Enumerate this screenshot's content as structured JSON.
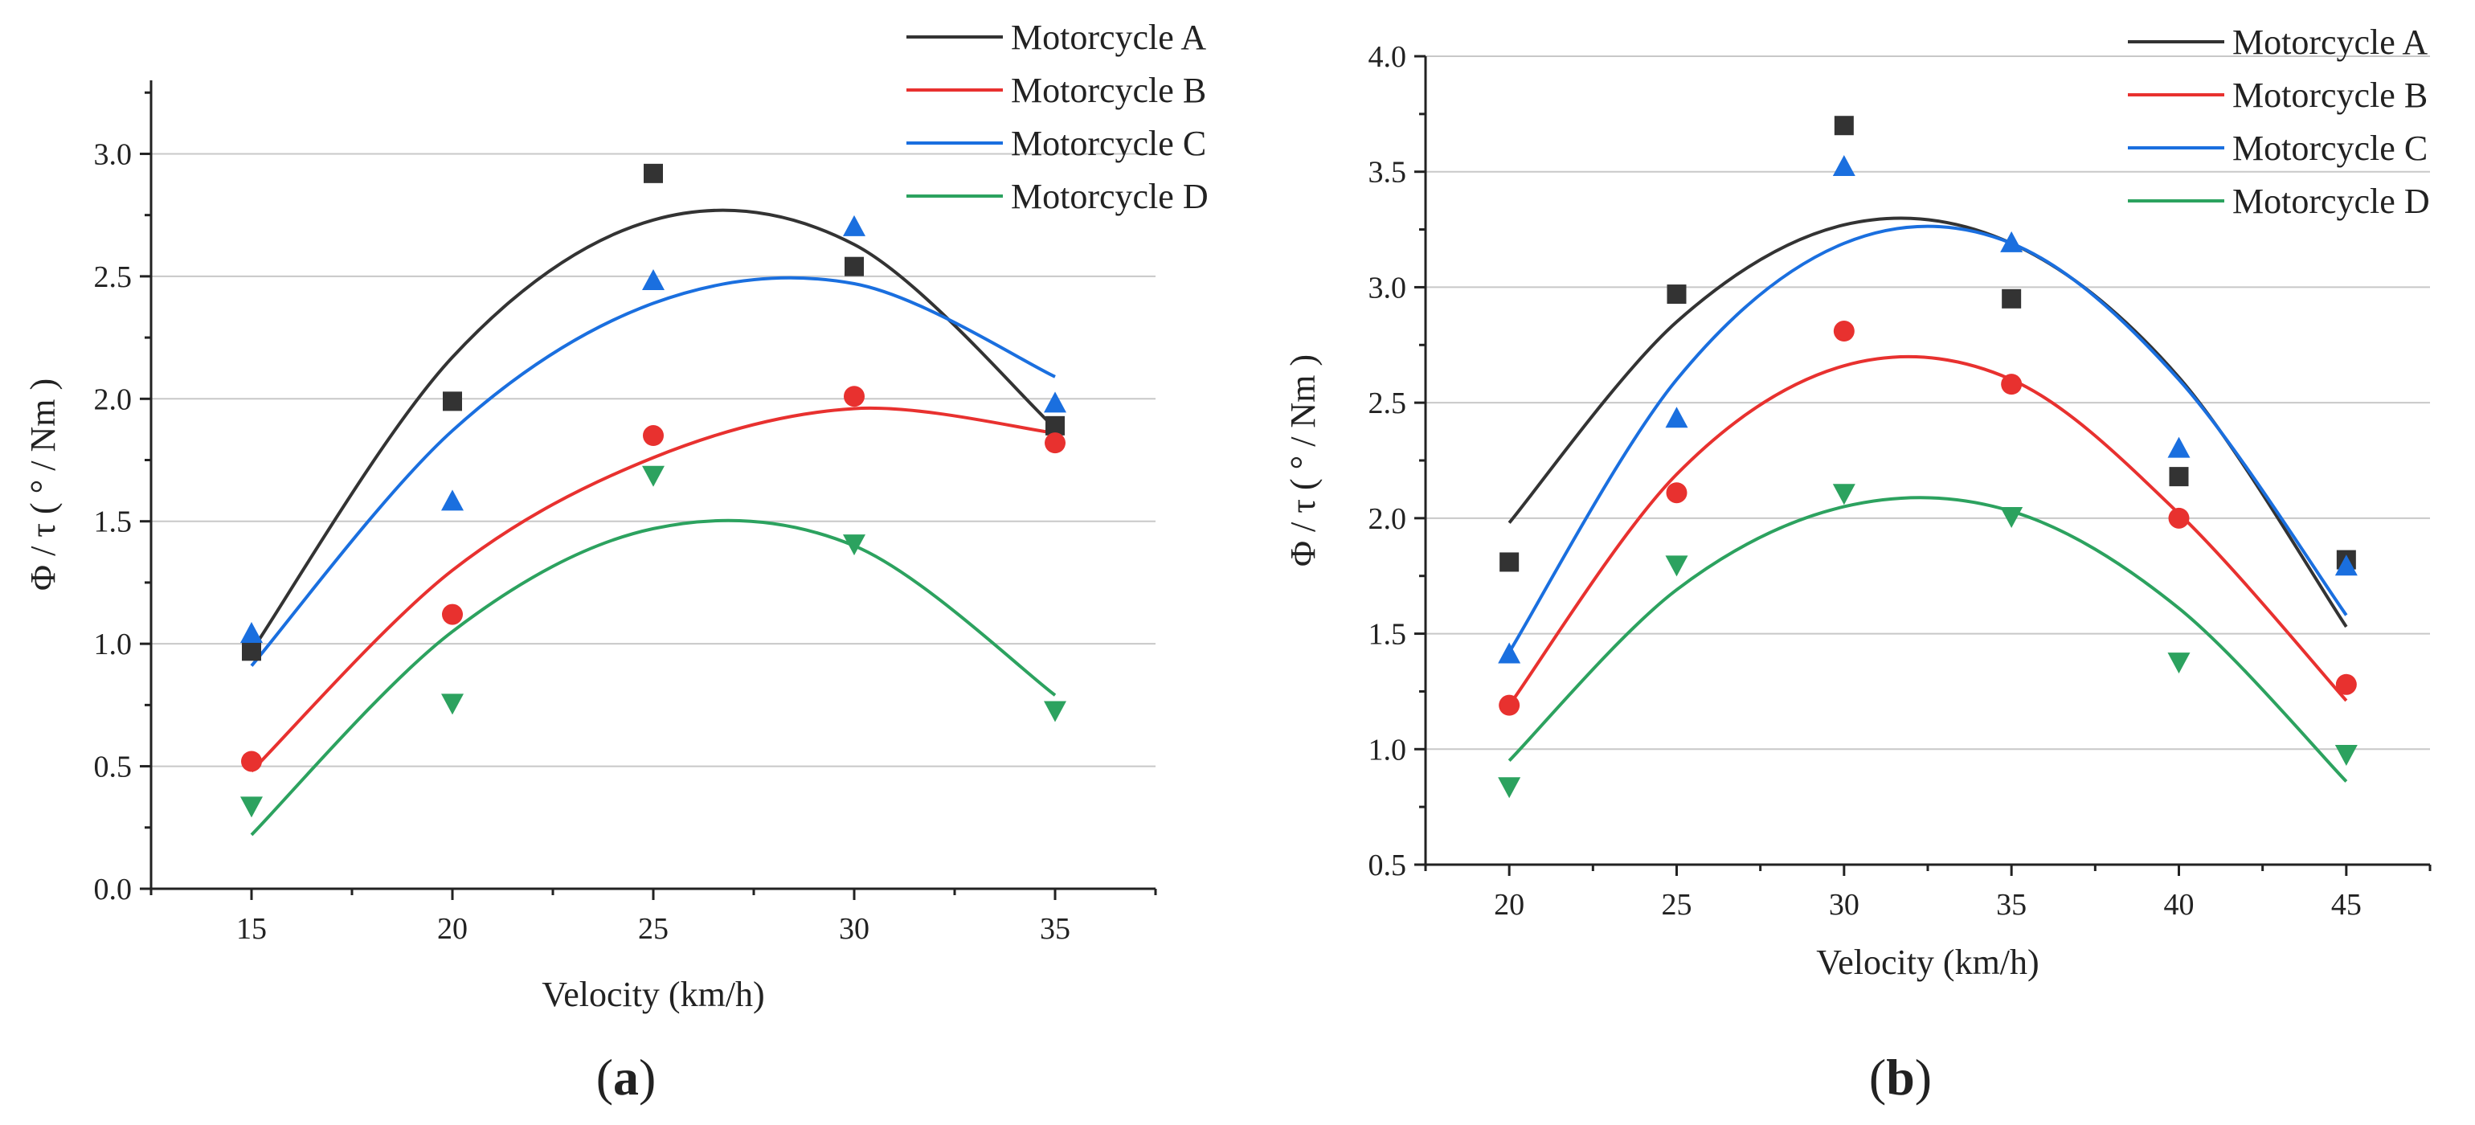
{
  "chart_data": [
    {
      "id": "a",
      "type": "scatter",
      "xlabel": "Velocity (km/h)",
      "ylabel": "Φ / τ ( ° / Nm )",
      "panel_open": "(",
      "panel_letter": "a",
      "panel_close": ")",
      "xlim": [
        12.5,
        37.5
      ],
      "ylim": [
        0,
        3.3
      ],
      "xticks": [
        15,
        20,
        25,
        30,
        35
      ],
      "xtick_labels": [
        "15",
        "20",
        "25",
        "30",
        "35"
      ],
      "yticks": [
        0,
        0.5,
        1,
        1.5,
        2,
        2.5,
        3
      ],
      "ytick_labels": [
        "0.0",
        "0.5",
        "1.0",
        "1.5",
        "2.0",
        "2.5",
        "3.0"
      ],
      "grid": true,
      "legend_position": "top-right",
      "series": [
        {
          "name": "Motorcycle A",
          "color": "#333333",
          "marker": "square",
          "x": [
            15,
            20,
            25,
            30,
            35
          ],
          "y": [
            0.97,
            1.99,
            2.92,
            2.54,
            1.89
          ],
          "fit_x": [
            15,
            20,
            25,
            30,
            35
          ],
          "fit_y": [
            0.97,
            2.17,
            2.73,
            2.63,
            1.88
          ]
        },
        {
          "name": "Motorcycle B",
          "color": "#e8312f",
          "marker": "circle",
          "x": [
            15,
            20,
            25,
            30,
            35
          ],
          "y": [
            0.52,
            1.12,
            1.85,
            2.01,
            1.82
          ],
          "fit_x": [
            15,
            20,
            25,
            30,
            35
          ],
          "fit_y": [
            0.48,
            1.3,
            1.76,
            1.96,
            1.86
          ]
        },
        {
          "name": "Motorcycle C",
          "color": "#1a6fdf",
          "marker": "triangle-up",
          "x": [
            15,
            20,
            25,
            30,
            35
          ],
          "y": [
            1.04,
            1.58,
            2.48,
            2.7,
            1.98
          ],
          "fit_x": [
            15,
            20,
            25,
            30,
            35
          ],
          "fit_y": [
            0.91,
            1.87,
            2.39,
            2.47,
            2.09
          ]
        },
        {
          "name": "Motorcycle D",
          "color": "#2ca25f",
          "marker": "triangle-down",
          "x": [
            15,
            20,
            25,
            30,
            35
          ],
          "y": [
            0.34,
            0.76,
            1.69,
            1.41,
            0.73
          ],
          "fit_x": [
            15,
            20,
            25,
            30,
            35
          ],
          "fit_y": [
            0.22,
            1.05,
            1.47,
            1.4,
            0.79
          ]
        }
      ]
    },
    {
      "id": "b",
      "type": "scatter",
      "xlabel": "Velocity (km/h)",
      "ylabel": "Φ / τ ( ° / Nm )",
      "panel_open": "(",
      "panel_letter": "b",
      "panel_close": ")",
      "xlim": [
        17.5,
        47.5
      ],
      "ylim": [
        0.5,
        4.0
      ],
      "xticks": [
        20,
        25,
        30,
        35,
        40,
        45
      ],
      "xtick_labels": [
        "20",
        "25",
        "30",
        "35",
        "40",
        "45"
      ],
      "yticks": [
        0.5,
        1,
        1.5,
        2,
        2.5,
        3,
        3.5,
        4
      ],
      "ytick_labels": [
        "0.5",
        "1.0",
        "1.5",
        "2.0",
        "2.5",
        "3.0",
        "3.5",
        "4.0"
      ],
      "grid": true,
      "legend_position": "top-right",
      "series": [
        {
          "name": "Motorcycle A",
          "color": "#333333",
          "marker": "square",
          "x": [
            20,
            25,
            30,
            35,
            40,
            45
          ],
          "y": [
            1.81,
            2.97,
            3.7,
            2.95,
            2.18,
            1.82
          ],
          "fit_x": [
            20,
            25,
            30,
            35,
            40,
            45
          ],
          "fit_y": [
            1.98,
            2.85,
            3.27,
            3.19,
            2.61,
            1.53
          ]
        },
        {
          "name": "Motorcycle B",
          "color": "#e8312f",
          "marker": "circle",
          "x": [
            20,
            25,
            30,
            35,
            40,
            45
          ],
          "y": [
            1.19,
            2.11,
            2.81,
            2.58,
            2.0,
            1.28
          ],
          "fit_x": [
            20,
            25,
            30,
            35,
            40,
            45
          ],
          "fit_y": [
            1.19,
            2.19,
            2.66,
            2.6,
            2.02,
            1.21
          ]
        },
        {
          "name": "Motorcycle C",
          "color": "#1a6fdf",
          "marker": "triangle-up",
          "x": [
            20,
            25,
            30,
            35,
            40,
            45
          ],
          "y": [
            1.41,
            2.43,
            3.52,
            3.19,
            2.3,
            1.79
          ],
          "fit_x": [
            20,
            25,
            30,
            35,
            40,
            45
          ],
          "fit_y": [
            1.42,
            2.6,
            3.19,
            3.19,
            2.6,
            1.58
          ]
        },
        {
          "name": "Motorcycle D",
          "color": "#2ca25f",
          "marker": "triangle-down",
          "x": [
            20,
            25,
            30,
            35,
            40,
            45
          ],
          "y": [
            0.84,
            1.8,
            2.11,
            2.01,
            1.38,
            0.98
          ],
          "fit_x": [
            20,
            25,
            30,
            35,
            40,
            45
          ],
          "fit_y": [
            0.95,
            1.69,
            2.05,
            2.03,
            1.61,
            0.86
          ]
        }
      ]
    }
  ]
}
